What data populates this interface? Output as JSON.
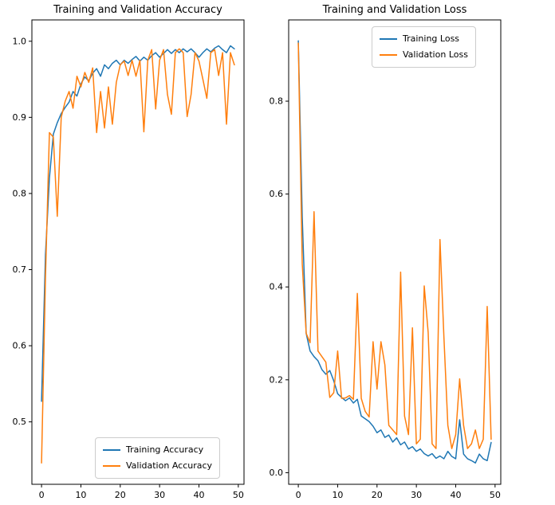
{
  "figure": {
    "background": "#ffffff",
    "line_colors": {
      "blue": "#1f77b4",
      "orange": "#ff7f0e"
    }
  },
  "chart_data": [
    {
      "type": "line",
      "title": "Training and Validation Accuracy",
      "xlabel": "",
      "ylabel": "",
      "xlim": [
        -2.45,
        51.45
      ],
      "ylim": [
        0.418,
        1.028
      ],
      "xticks": [
        "0",
        "10",
        "20",
        "30",
        "40",
        "50"
      ],
      "yticks": [
        "0.5",
        "0.6",
        "0.7",
        "0.8",
        "0.9",
        "1.0"
      ],
      "grid": false,
      "legend_position": "lower right",
      "x": [
        0,
        1,
        2,
        3,
        4,
        5,
        6,
        7,
        8,
        9,
        10,
        11,
        12,
        13,
        14,
        15,
        16,
        17,
        18,
        19,
        20,
        21,
        22,
        23,
        24,
        25,
        26,
        27,
        28,
        29,
        30,
        31,
        32,
        33,
        34,
        35,
        36,
        37,
        38,
        39,
        40,
        41,
        42,
        43,
        44,
        45,
        46,
        47,
        48,
        49
      ],
      "series": [
        {
          "name": "Training Accuracy",
          "color": "#1f77b4",
          "values": [
            0.527,
            0.72,
            0.82,
            0.878,
            0.893,
            0.905,
            0.913,
            0.92,
            0.934,
            0.928,
            0.944,
            0.953,
            0.948,
            0.958,
            0.964,
            0.954,
            0.969,
            0.964,
            0.971,
            0.975,
            0.969,
            0.975,
            0.971,
            0.976,
            0.98,
            0.974,
            0.979,
            0.975,
            0.981,
            0.985,
            0.979,
            0.984,
            0.989,
            0.984,
            0.989,
            0.985,
            0.99,
            0.986,
            0.99,
            0.985,
            0.979,
            0.985,
            0.99,
            0.986,
            0.991,
            0.994,
            0.989,
            0.985,
            0.994,
            0.99
          ]
        },
        {
          "name": "Validation Accuracy",
          "color": "#ff7f0e",
          "values": [
            0.446,
            0.69,
            0.88,
            0.874,
            0.77,
            0.9,
            0.921,
            0.934,
            0.912,
            0.954,
            0.94,
            0.959,
            0.946,
            0.965,
            0.88,
            0.934,
            0.886,
            0.94,
            0.891,
            0.946,
            0.969,
            0.974,
            0.955,
            0.975,
            0.954,
            0.975,
            0.881,
            0.975,
            0.989,
            0.911,
            0.975,
            0.989,
            0.93,
            0.904,
            0.985,
            0.99,
            0.985,
            0.901,
            0.93,
            0.985,
            0.974,
            0.95,
            0.925,
            0.985,
            0.989,
            0.955,
            0.985,
            0.891,
            0.985,
            0.969
          ]
        }
      ]
    },
    {
      "type": "line",
      "title": "Training and Validation Loss",
      "xlabel": "",
      "ylabel": "",
      "xlim": [
        -2.45,
        51.45
      ],
      "ylim": [
        -0.025,
        0.975
      ],
      "xticks": [
        "0",
        "10",
        "20",
        "30",
        "40",
        "50"
      ],
      "yticks": [
        "0.0",
        "0.2",
        "0.4",
        "0.6",
        "0.8"
      ],
      "grid": false,
      "legend_position": "upper right",
      "x": [
        0,
        1,
        2,
        3,
        4,
        5,
        6,
        7,
        8,
        9,
        10,
        11,
        12,
        13,
        14,
        15,
        16,
        17,
        18,
        19,
        20,
        21,
        22,
        23,
        24,
        25,
        26,
        27,
        28,
        29,
        30,
        31,
        32,
        33,
        34,
        35,
        36,
        37,
        38,
        39,
        40,
        41,
        42,
        43,
        44,
        45,
        46,
        47,
        48,
        49
      ],
      "series": [
        {
          "name": "Training Loss",
          "color": "#1f77b4",
          "values": [
            0.93,
            0.55,
            0.3,
            0.262,
            0.25,
            0.241,
            0.222,
            0.212,
            0.22,
            0.198,
            0.17,
            0.162,
            0.155,
            0.161,
            0.15,
            0.158,
            0.122,
            0.116,
            0.11,
            0.1,
            0.086,
            0.092,
            0.076,
            0.081,
            0.066,
            0.075,
            0.06,
            0.066,
            0.051,
            0.056,
            0.046,
            0.051,
            0.041,
            0.036,
            0.041,
            0.031,
            0.036,
            0.03,
            0.046,
            0.035,
            0.03,
            0.114,
            0.04,
            0.03,
            0.026,
            0.021,
            0.04,
            0.03,
            0.026,
            0.065
          ]
        },
        {
          "name": "Validation Loss",
          "color": "#ff7f0e",
          "values": [
            0.925,
            0.45,
            0.3,
            0.28,
            0.562,
            0.262,
            0.25,
            0.238,
            0.162,
            0.172,
            0.262,
            0.16,
            0.161,
            0.166,
            0.158,
            0.386,
            0.16,
            0.132,
            0.12,
            0.282,
            0.18,
            0.282,
            0.232,
            0.102,
            0.092,
            0.082,
            0.432,
            0.122,
            0.082,
            0.312,
            0.062,
            0.072,
            0.402,
            0.302,
            0.062,
            0.052,
            0.502,
            0.292,
            0.102,
            0.052,
            0.082,
            0.202,
            0.102,
            0.052,
            0.062,
            0.092,
            0.052,
            0.072,
            0.358,
            0.072
          ]
        }
      ]
    }
  ]
}
